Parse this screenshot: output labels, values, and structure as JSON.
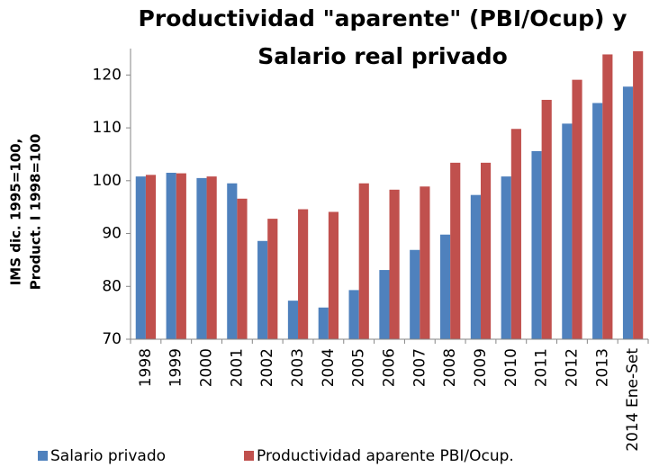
{
  "chart_data": {
    "type": "bar",
    "title": [
      "Productividad \"aparente\" (PBI/Ocup) y",
      "Salario real privado"
    ],
    "y_label": [
      "IMS dic. 1995=100,",
      "Product. I 1998=100"
    ],
    "categories": [
      "1998",
      "1999",
      "2000",
      "2001",
      "2002",
      "2003",
      "2004",
      "2005",
      "2006",
      "2007",
      "2008",
      "2009",
      "2010",
      "2011",
      "2012",
      "2013",
      "2014 Ene-Set"
    ],
    "series": [
      {
        "name": "Salario privado",
        "color": "#4f81bd",
        "values": [
          100.8,
          101.5,
          100.5,
          99.5,
          88.6,
          77.3,
          76.0,
          79.3,
          83.1,
          86.9,
          89.8,
          97.3,
          100.8,
          105.6,
          110.8,
          114.7,
          117.8
        ]
      },
      {
        "name": "Productividad aparente PBI/Ocup.",
        "color": "#c0504d",
        "values": [
          101.1,
          101.4,
          100.8,
          96.6,
          92.8,
          94.6,
          94.1,
          99.5,
          98.3,
          98.9,
          103.4,
          103.4,
          109.8,
          115.3,
          119.1,
          123.9,
          124.5
        ]
      }
    ],
    "ylim": [
      70,
      125
    ],
    "yticks": [
      70,
      80,
      90,
      100,
      110,
      120
    ],
    "grid": false,
    "legend": "bottom"
  }
}
